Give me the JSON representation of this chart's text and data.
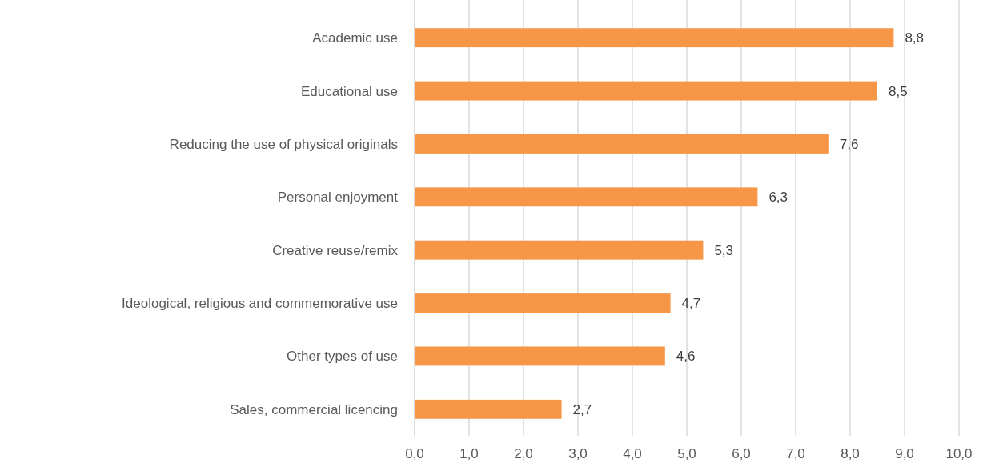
{
  "chart_data": {
    "type": "bar",
    "orientation": "horizontal",
    "categories": [
      "Academic use",
      "Educational use",
      "Reducing the use of physical originals",
      "Personal enjoyment",
      "Creative reuse/remix",
      "Ideological, religious and commemorative use",
      "Other types of use",
      "Sales, commercial licencing"
    ],
    "values": [
      8.8,
      8.5,
      7.6,
      6.3,
      5.3,
      4.7,
      4.6,
      2.7
    ],
    "value_labels": [
      "8,8",
      "8,5",
      "7,6",
      "6,3",
      "5,3",
      "4,7",
      "4,6",
      "2,7"
    ],
    "color": "#f79646",
    "xlim": [
      0,
      10
    ],
    "xticks": [
      {
        "value": 0,
        "label": "0,0"
      },
      {
        "value": 1,
        "label": "1,0"
      },
      {
        "value": 2,
        "label": "2,0"
      },
      {
        "value": 3,
        "label": "3,0"
      },
      {
        "value": 4,
        "label": "4,0"
      },
      {
        "value": 5,
        "label": "5,0"
      },
      {
        "value": 6,
        "label": "6,0"
      },
      {
        "value": 7,
        "label": "7,0"
      },
      {
        "value": 8,
        "label": "8,0"
      },
      {
        "value": 9,
        "label": "9,0"
      },
      {
        "value": 10,
        "label": "10,0"
      }
    ],
    "grid": "x"
  }
}
